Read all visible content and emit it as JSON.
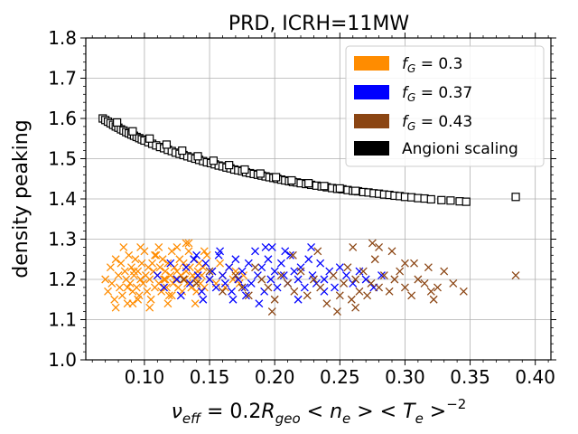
{
  "chart_data": {
    "type": "scatter",
    "title": "PRD, ICRH=11MW",
    "xlabel_parts": {
      "nu": "ν",
      "nu_sub": "eff",
      "eq": " = 0.2",
      "R": "R",
      "R_sub": "geo",
      "lt1": " < ",
      "n": "n",
      "n_sub": "e",
      "gt1": " > ",
      "lt2": "< ",
      "T": "T",
      "T_sub": "e",
      "gt2": " >",
      "exp": "−2"
    },
    "ylabel": "density peaking",
    "xlim": [
      0.055,
      0.412
    ],
    "ylim": [
      1.0,
      1.8
    ],
    "xticks": [
      "0.10",
      "0.15",
      "0.20",
      "0.25",
      "0.30",
      "0.35",
      "0.40"
    ],
    "xtick_values": [
      0.1,
      0.15,
      0.2,
      0.25,
      0.3,
      0.35,
      0.4
    ],
    "yticks": [
      "1.0",
      "1.1",
      "1.2",
      "1.3",
      "1.4",
      "1.5",
      "1.6",
      "1.7",
      "1.8"
    ],
    "ytick_values": [
      1.0,
      1.1,
      1.2,
      1.3,
      1.4,
      1.5,
      1.6,
      1.7,
      1.8
    ],
    "grid": true,
    "legend_position": "top-right",
    "legend": [
      {
        "label_prefix": "f",
        "label_sub": "G",
        "label_suffix": " = 0.3",
        "color": "#ff8c00"
      },
      {
        "label_prefix": "f",
        "label_sub": "G",
        "label_suffix": " = 0.37",
        "color": "#0000ff"
      },
      {
        "label_prefix": "f",
        "label_sub": "G",
        "label_suffix": " = 0.43",
        "color": "#8b4513"
      },
      {
        "label_text": "Angioni scaling",
        "color": "#000000"
      }
    ],
    "series": [
      {
        "name": "fG = 0.3",
        "marker": "x",
        "color": "#ff8c00",
        "x": [
          0.07,
          0.072,
          0.074,
          0.075,
          0.077,
          0.078,
          0.08,
          0.081,
          0.082,
          0.083,
          0.085,
          0.086,
          0.087,
          0.088,
          0.089,
          0.09,
          0.091,
          0.092,
          0.093,
          0.094,
          0.095,
          0.096,
          0.097,
          0.098,
          0.099,
          0.1,
          0.101,
          0.102,
          0.103,
          0.104,
          0.105,
          0.106,
          0.107,
          0.108,
          0.109,
          0.11,
          0.111,
          0.112,
          0.113,
          0.114,
          0.115,
          0.116,
          0.117,
          0.118,
          0.119,
          0.12,
          0.121,
          0.122,
          0.123,
          0.124,
          0.125,
          0.126,
          0.127,
          0.128,
          0.129,
          0.13,
          0.131,
          0.132,
          0.133,
          0.134,
          0.135,
          0.136,
          0.137,
          0.138,
          0.139,
          0.14,
          0.141,
          0.142,
          0.143,
          0.144,
          0.145,
          0.146,
          0.148,
          0.15,
          0.152,
          0.155,
          0.158,
          0.16,
          0.162,
          0.165,
          0.168,
          0.17,
          0.173,
          0.176,
          0.078,
          0.084,
          0.091,
          0.097,
          0.104,
          0.111,
          0.118,
          0.125,
          0.132,
          0.139,
          0.146,
          0.087,
          0.095,
          0.108,
          0.121,
          0.134,
          0.092,
          0.116
        ],
        "y": [
          1.2,
          1.17,
          1.23,
          1.19,
          1.15,
          1.25,
          1.21,
          1.18,
          1.24,
          1.16,
          1.22,
          1.2,
          1.14,
          1.26,
          1.19,
          1.23,
          1.17,
          1.21,
          1.25,
          1.18,
          1.22,
          1.16,
          1.2,
          1.24,
          1.19,
          1.27,
          1.21,
          1.17,
          1.23,
          1.2,
          1.15,
          1.24,
          1.22,
          1.18,
          1.26,
          1.21,
          1.19,
          1.23,
          1.17,
          1.25,
          1.2,
          1.22,
          1.18,
          1.24,
          1.16,
          1.21,
          1.27,
          1.19,
          1.23,
          1.2,
          1.22,
          1.18,
          1.25,
          1.21,
          1.17,
          1.24,
          1.2,
          1.22,
          1.19,
          1.29,
          1.23,
          1.18,
          1.21,
          1.25,
          1.2,
          1.17,
          1.22,
          1.24,
          1.19,
          1.21,
          1.23,
          1.18,
          1.26,
          1.2,
          1.22,
          1.19,
          1.24,
          1.21,
          1.18,
          1.23,
          1.2,
          1.22,
          1.19,
          1.21,
          1.13,
          1.28,
          1.14,
          1.28,
          1.13,
          1.28,
          1.14,
          1.28,
          1.29,
          1.14,
          1.27,
          1.18,
          1.15,
          1.26,
          1.16,
          1.27,
          1.22,
          1.2
        ]
      },
      {
        "name": "fG = 0.37",
        "marker": "x",
        "color": "#0000ff",
        "x": [
          0.11,
          0.115,
          0.12,
          0.125,
          0.128,
          0.132,
          0.135,
          0.138,
          0.141,
          0.144,
          0.147,
          0.15,
          0.152,
          0.155,
          0.157,
          0.16,
          0.162,
          0.165,
          0.167,
          0.17,
          0.172,
          0.175,
          0.177,
          0.18,
          0.182,
          0.185,
          0.187,
          0.19,
          0.192,
          0.195,
          0.197,
          0.2,
          0.202,
          0.205,
          0.207,
          0.21,
          0.212,
          0.215,
          0.218,
          0.22,
          0.223,
          0.226,
          0.229,
          0.232,
          0.235,
          0.238,
          0.242,
          0.246,
          0.25,
          0.255,
          0.26,
          0.265,
          0.27,
          0.276,
          0.282,
          0.145,
          0.168,
          0.188,
          0.208,
          0.228,
          0.158,
          0.178,
          0.198,
          0.218,
          0.14,
          0.193,
          0.238
        ],
        "y": [
          1.21,
          1.18,
          1.24,
          1.2,
          1.16,
          1.23,
          1.19,
          1.25,
          1.21,
          1.17,
          1.24,
          1.2,
          1.22,
          1.18,
          1.26,
          1.21,
          1.19,
          1.23,
          1.17,
          1.25,
          1.2,
          1.22,
          1.18,
          1.24,
          1.19,
          1.27,
          1.21,
          1.23,
          1.17,
          1.25,
          1.2,
          1.22,
          1.18,
          1.24,
          1.21,
          1.19,
          1.26,
          1.22,
          1.2,
          1.23,
          1.18,
          1.25,
          1.21,
          1.19,
          1.24,
          1.2,
          1.22,
          1.18,
          1.23,
          1.21,
          1.19,
          1.22,
          1.2,
          1.18,
          1.21,
          1.15,
          1.15,
          1.14,
          1.27,
          1.28,
          1.27,
          1.16,
          1.28,
          1.15,
          1.26,
          1.28,
          1.17
        ]
      },
      {
        "name": "fG = 0.43",
        "marker": "x",
        "color": "#8b4513",
        "x": [
          0.13,
          0.14,
          0.15,
          0.16,
          0.17,
          0.175,
          0.18,
          0.185,
          0.19,
          0.195,
          0.2,
          0.205,
          0.21,
          0.215,
          0.22,
          0.225,
          0.23,
          0.235,
          0.24,
          0.245,
          0.25,
          0.253,
          0.256,
          0.259,
          0.262,
          0.265,
          0.268,
          0.271,
          0.274,
          0.277,
          0.28,
          0.284,
          0.288,
          0.292,
          0.296,
          0.3,
          0.305,
          0.31,
          0.315,
          0.32,
          0.325,
          0.33,
          0.337,
          0.345,
          0.385,
          0.248,
          0.262,
          0.275,
          0.29,
          0.307,
          0.322,
          0.198,
          0.214,
          0.233,
          0.26,
          0.28,
          0.3,
          0.318
        ],
        "y": [
          1.2,
          1.19,
          1.22,
          1.17,
          1.21,
          1.18,
          1.16,
          1.23,
          1.2,
          1.18,
          1.15,
          1.21,
          1.19,
          1.17,
          1.22,
          1.16,
          1.2,
          1.18,
          1.14,
          1.21,
          1.16,
          1.19,
          1.23,
          1.15,
          1.2,
          1.17,
          1.22,
          1.16,
          1.19,
          1.25,
          1.18,
          1.21,
          1.17,
          1.2,
          1.22,
          1.18,
          1.16,
          1.2,
          1.19,
          1.17,
          1.18,
          1.22,
          1.19,
          1.17,
          1.21,
          1.12,
          1.13,
          1.29,
          1.27,
          1.24,
          1.15,
          1.12,
          1.26,
          1.27,
          1.28,
          1.28,
          1.24,
          1.23
        ]
      },
      {
        "name": "Angioni scaling",
        "marker": "s",
        "color": "#000000",
        "x": [
          0.068,
          0.07,
          0.072,
          0.074,
          0.076,
          0.078,
          0.08,
          0.082,
          0.084,
          0.086,
          0.088,
          0.09,
          0.092,
          0.094,
          0.096,
          0.098,
          0.1,
          0.103,
          0.106,
          0.109,
          0.112,
          0.115,
          0.118,
          0.121,
          0.124,
          0.127,
          0.13,
          0.133,
          0.136,
          0.139,
          0.142,
          0.145,
          0.148,
          0.151,
          0.154,
          0.157,
          0.16,
          0.163,
          0.166,
          0.169,
          0.172,
          0.175,
          0.178,
          0.181,
          0.184,
          0.187,
          0.19,
          0.193,
          0.196,
          0.199,
          0.202,
          0.205,
          0.208,
          0.211,
          0.214,
          0.217,
          0.22,
          0.224,
          0.228,
          0.232,
          0.236,
          0.24,
          0.244,
          0.248,
          0.252,
          0.256,
          0.26,
          0.264,
          0.268,
          0.272,
          0.276,
          0.28,
          0.284,
          0.288,
          0.292,
          0.296,
          0.3,
          0.305,
          0.31,
          0.315,
          0.32,
          0.328,
          0.335,
          0.342,
          0.347,
          0.385,
          0.079,
          0.091,
          0.104,
          0.117,
          0.129,
          0.141,
          0.153,
          0.165,
          0.177,
          0.189,
          0.201,
          0.213,
          0.226,
          0.238,
          0.25,
          0.262
        ],
        "y": [
          1.6,
          1.596,
          1.592,
          1.588,
          1.584,
          1.58,
          1.577,
          1.573,
          1.57,
          1.566,
          1.563,
          1.56,
          1.557,
          1.554,
          1.551,
          1.548,
          1.545,
          1.541,
          1.537,
          1.533,
          1.529,
          1.526,
          1.522,
          1.519,
          1.515,
          1.512,
          1.509,
          1.506,
          1.503,
          1.5,
          1.497,
          1.494,
          1.491,
          1.489,
          1.486,
          1.483,
          1.481,
          1.478,
          1.476,
          1.473,
          1.471,
          1.469,
          1.466,
          1.464,
          1.462,
          1.46,
          1.458,
          1.456,
          1.454,
          1.452,
          1.45,
          1.448,
          1.446,
          1.444,
          1.442,
          1.441,
          1.439,
          1.437,
          1.435,
          1.433,
          1.431,
          1.429,
          1.427,
          1.425,
          1.424,
          1.422,
          1.42,
          1.419,
          1.417,
          1.416,
          1.414,
          1.413,
          1.411,
          1.41,
          1.408,
          1.407,
          1.405,
          1.404,
          1.402,
          1.401,
          1.399,
          1.397,
          1.396,
          1.394,
          1.393,
          1.405,
          1.59,
          1.568,
          1.55,
          1.535,
          1.52,
          1.506,
          1.495,
          1.484,
          1.473,
          1.463,
          1.454,
          1.446,
          1.439,
          1.432,
          1.426,
          1.42
        ]
      }
    ]
  }
}
